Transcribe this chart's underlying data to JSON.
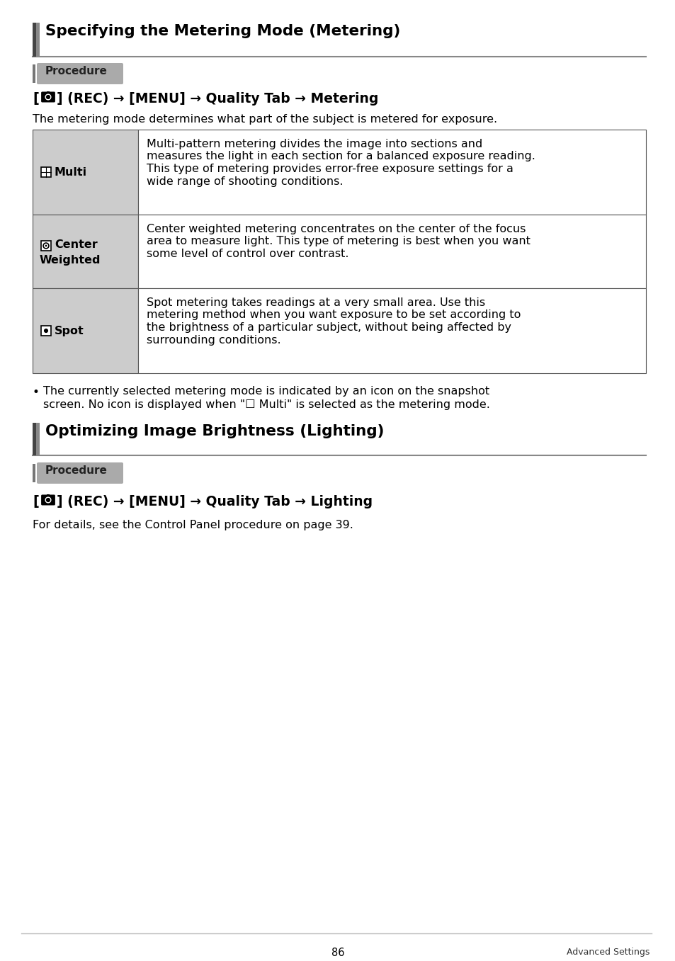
{
  "page_background": "#ffffff",
  "section1_title": "Specifying the Metering Mode (Metering)",
  "section2_title": "Optimizing Image Brightness (Lighting)",
  "procedure_label": "Procedure",
  "intro_text": "The metering mode determines what part of the subject is metered for exposure.",
  "table_rows": [
    {
      "label": "Multi",
      "description": "Multi-pattern metering divides the image into sections and\nmeasures the light in each section for a balanced exposure reading.\nThis type of metering provides error-free exposure settings for a\nwide range of shooting conditions."
    },
    {
      "label": "Center\nWeighted",
      "description": "Center weighted metering concentrates on the center of the focus\narea to measure light. This type of metering is best when you want\nsome level of control over contrast."
    },
    {
      "label": "Spot",
      "description": "Spot metering takes readings at a very small area. Use this\nmetering method when you want exposure to be set according to\nthe brightness of a particular subject, without being affected by\nsurrounding conditions."
    }
  ],
  "bullet_line1": "The currently selected metering mode is indicated by an icon on the snapshot",
  "bullet_line2": "screen. No icon is displayed when \"☐ Multi\" is selected as the metering mode.",
  "lighting_text": "For details, see the Control Panel procedure on page 39.",
  "page_number": "86",
  "footer_right": "Advanced Settings"
}
